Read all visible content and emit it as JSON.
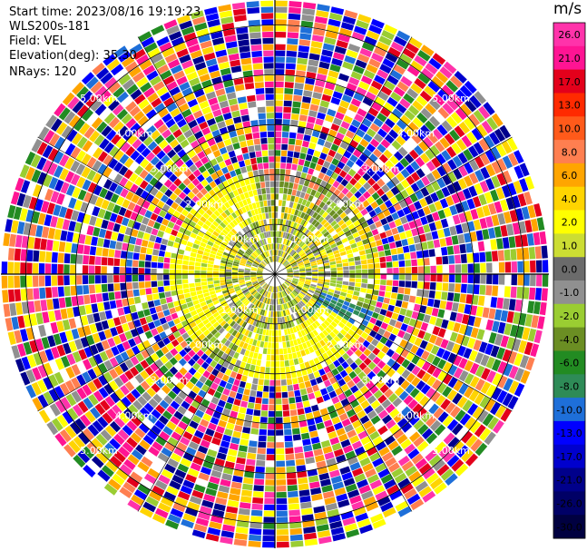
{
  "info": {
    "start_time": "Start time: 2023/08/16 19:19:23",
    "site": "WLS200s-181",
    "field": "Field: VEL",
    "elevation": "Elevation(deg): 35.30",
    "nrays": "NRays: 120"
  },
  "chart_data": {
    "type": "heatmap",
    "projection": "polar-ppi",
    "field": "VEL",
    "units": "m/s",
    "nrays": 120,
    "range_ring_labels": [
      "1.00km",
      "2.00km",
      "3.00km",
      "4.00km",
      "5.00km"
    ],
    "grid": true,
    "colorbar": {
      "unit_label": "m/s",
      "ticks": [
        "26.0",
        "21.0",
        "17.0",
        "13.0",
        "10.0",
        "8.0",
        "6.0",
        "4.0",
        "2.0",
        "1.0",
        "0.0",
        "-1.0",
        "-2.0",
        "-4.0",
        "-6.0",
        "-8.0",
        "-10.0",
        "-13.0",
        "-17.0",
        "-21.0",
        "-26.0",
        "-30.0"
      ],
      "colors": [
        "#ff33aa",
        "#ff1493",
        "#e3001b",
        "#ff2a00",
        "#ff5a1a",
        "#ff7f50",
        "#ffa500",
        "#ffd400",
        "#ffff00",
        "#ccdd33",
        "#6b6b6b",
        "#909090",
        "#9acd32",
        "#6b8e23",
        "#228b22",
        "#2e8b57",
        "#1e6fd9",
        "#0000ff",
        "#0000cd",
        "#00008b",
        "#000066",
        "#000040"
      ],
      "placement": "right"
    },
    "description_of_pattern": {
      "inner_region_max_km": 2.2,
      "inner_colors": [
        "#9acd32",
        "#6b8e23",
        "#909090",
        "#ffff00",
        "#ffd400"
      ],
      "noise_colors": [
        "#ff1493",
        "#ff33aa",
        "#e3001b",
        "#ffd400",
        "#ffff00",
        "#0000ff",
        "#0000cd",
        "#00008b",
        "#1e6fd9",
        "#9acd32",
        "#ff7f50",
        "#ffa500",
        "#228b22",
        "#909090"
      ]
    }
  }
}
